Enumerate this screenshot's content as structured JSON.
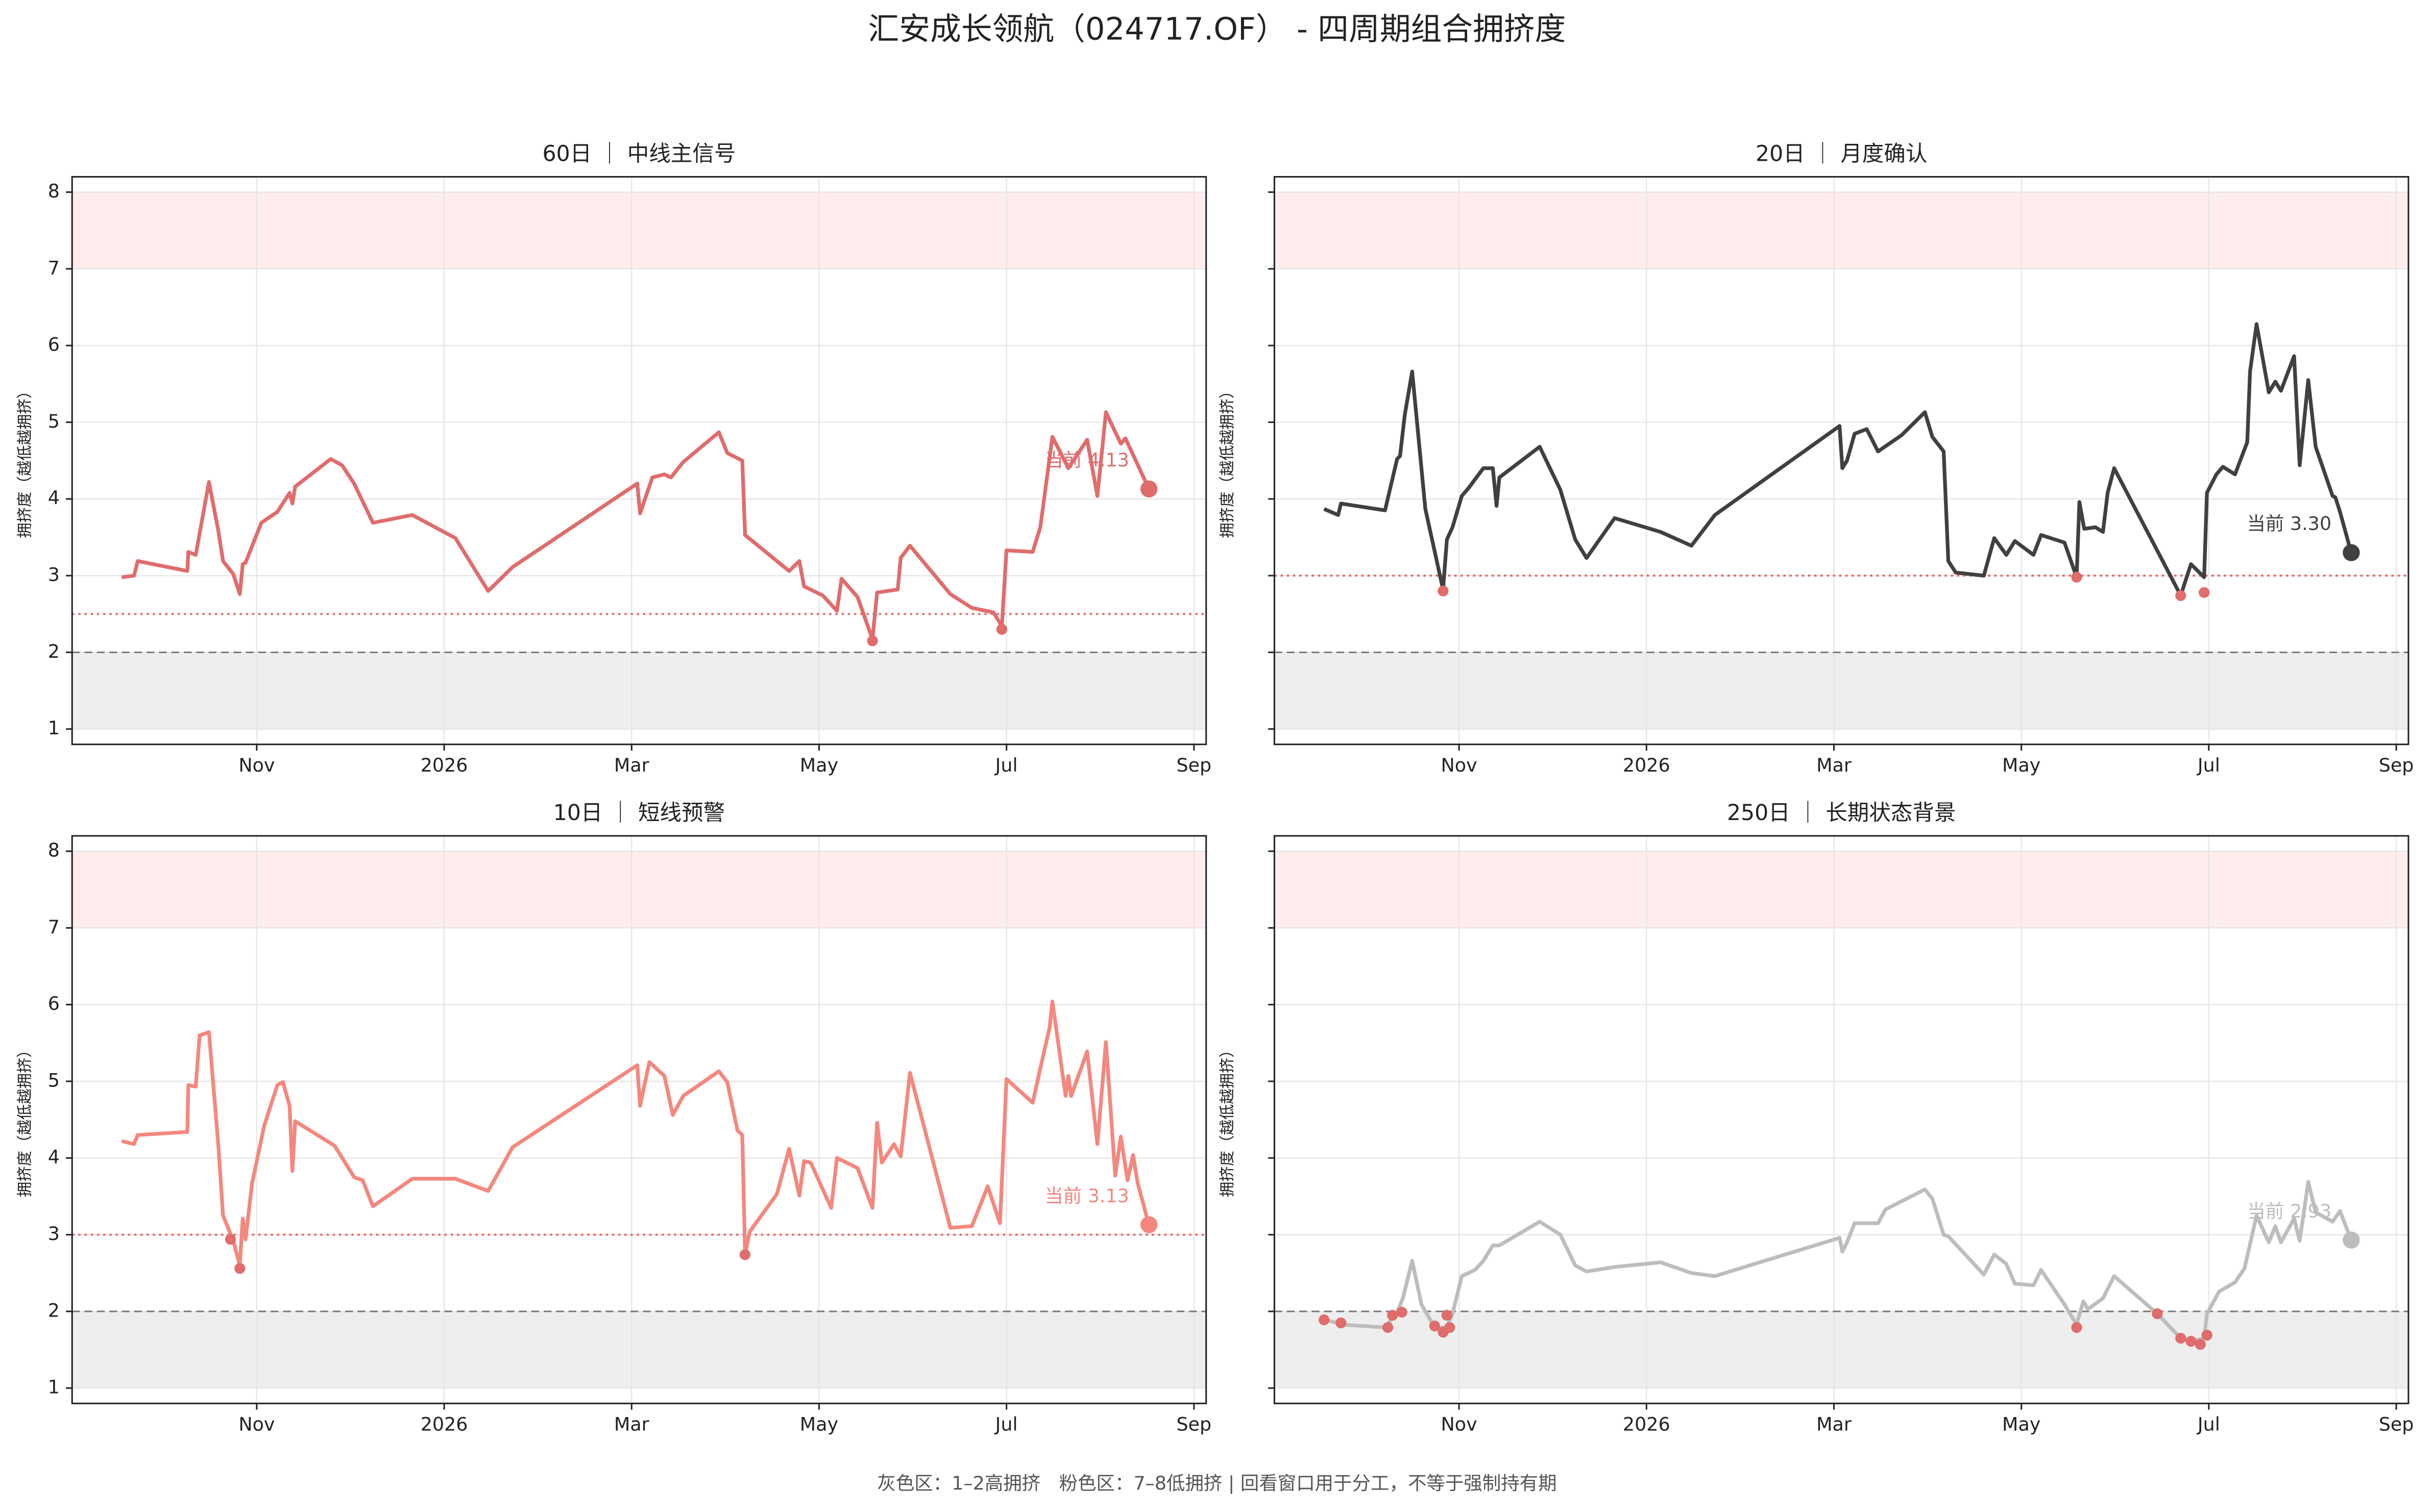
{
  "title": "汇安成长领航（024717.OF） - 四周期组合拥挤度",
  "footer": "灰色区：1–2高拥挤　粉色区：7–8低拥挤 | 回看窗口用于分工，不等于强制持有期",
  "chart_data": [
    {
      "type": "line",
      "title": "60日 ｜ 中线主信号",
      "ylabel": "拥挤度（越低越拥挤）",
      "color": "#e06c6c",
      "threshold": 2.5,
      "threshold_color": "#e06c6c",
      "reference_line": 2,
      "bands": [
        {
          "from": 1,
          "to": 2,
          "color": "#eeeeee"
        },
        {
          "from": 7,
          "to": 8,
          "color": "#ffeded"
        }
      ],
      "xlim": [
        8.03,
        20.13
      ],
      "ylim": [
        0.8,
        8.2
      ],
      "yticks": [
        1,
        2,
        3,
        4,
        5,
        6,
        7,
        8
      ],
      "xticks": [
        {
          "value": 10,
          "label": "Nov"
        },
        {
          "value": 12,
          "label": "2026"
        },
        {
          "value": 14,
          "label": "Mar"
        },
        {
          "value": 16,
          "label": "May"
        },
        {
          "value": 18,
          "label": "Jul"
        },
        {
          "value": 20,
          "label": "Sep"
        }
      ],
      "grid": true,
      "current_label": "当前 4.13",
      "x": [
        8.56,
        8.69,
        8.73,
        9.26,
        9.27,
        9.35,
        9.49,
        9.59,
        9.64,
        9.75,
        9.82,
        9.85,
        9.88,
        10.05,
        10.22,
        10.35,
        10.38,
        10.41,
        10.79,
        10.91,
        11.04,
        11.24,
        11.66,
        12.12,
        12.47,
        12.73,
        14.06,
        14.09,
        14.22,
        14.35,
        14.42,
        14.55,
        14.93,
        15.02,
        15.18,
        15.21,
        15.55,
        15.68,
        15.79,
        15.84,
        16.04,
        16.19,
        16.24,
        16.41,
        16.57,
        16.62,
        16.84,
        16.87,
        16.97,
        17.4,
        17.63,
        17.86,
        17.95,
        18.0,
        18.28,
        18.36,
        18.49,
        18.66,
        18.86,
        18.97,
        19.06,
        19.22,
        19.27,
        19.52
      ],
      "values": [
        2.98,
        3.0,
        3.19,
        3.06,
        3.31,
        3.27,
        4.22,
        3.59,
        3.19,
        3.02,
        2.76,
        3.15,
        3.17,
        3.69,
        3.83,
        4.08,
        3.94,
        4.16,
        4.52,
        4.44,
        4.2,
        3.69,
        3.79,
        3.49,
        2.8,
        3.11,
        4.2,
        3.81,
        4.28,
        4.32,
        4.28,
        4.48,
        4.87,
        4.6,
        4.5,
        3.53,
        3.19,
        3.06,
        3.19,
        2.86,
        2.74,
        2.54,
        2.96,
        2.72,
        2.17,
        2.78,
        2.82,
        3.23,
        3.39,
        2.76,
        2.58,
        2.52,
        2.34,
        3.33,
        3.31,
        3.63,
        4.81,
        4.4,
        4.77,
        4.04,
        5.13,
        4.72,
        4.79,
        4.13
      ],
      "markers": {
        "color": "#e06c6c",
        "x": [
          16.57,
          17.95
        ],
        "values": [
          2.15,
          2.3
        ]
      }
    },
    {
      "type": "line",
      "title": "20日 ｜ 月度确认",
      "ylabel": "拥挤度（越低越拥挤）",
      "color": "#404040",
      "threshold": 3,
      "threshold_color": "#e06c6c",
      "reference_line": 2,
      "bands": [
        {
          "from": 1,
          "to": 2,
          "color": "#eeeeee"
        },
        {
          "from": 7,
          "to": 8,
          "color": "#ffeded"
        }
      ],
      "xlim": [
        8.03,
        20.13
      ],
      "ylim": [
        0.8,
        8.2
      ],
      "yticks": [
        1,
        2,
        3,
        4,
        5,
        6,
        7,
        8
      ],
      "xticks": [
        {
          "value": 10,
          "label": "Nov"
        },
        {
          "value": 12,
          "label": "2026"
        },
        {
          "value": 14,
          "label": "Mar"
        },
        {
          "value": 16,
          "label": "May"
        },
        {
          "value": 18,
          "label": "Jul"
        },
        {
          "value": 20,
          "label": "Sep"
        }
      ],
      "grid": true,
      "current_label": "当前 3.30",
      "x": [
        8.56,
        8.71,
        8.74,
        9.21,
        9.34,
        9.37,
        9.42,
        9.5,
        9.64,
        9.83,
        9.87,
        9.93,
        10.03,
        10.1,
        10.26,
        10.36,
        10.4,
        10.43,
        10.86,
        11.08,
        11.24,
        11.36,
        11.66,
        12.15,
        12.48,
        12.73,
        14.06,
        14.09,
        14.14,
        14.22,
        14.35,
        14.47,
        14.72,
        14.97,
        15.05,
        15.17,
        15.22,
        15.3,
        15.6,
        15.71,
        15.84,
        15.93,
        16.13,
        16.21,
        16.46,
        16.59,
        16.62,
        16.67,
        16.79,
        16.87,
        16.92,
        16.99,
        17.7,
        17.81,
        17.95,
        17.98,
        18.08,
        18.15,
        18.28,
        18.41,
        18.44,
        18.51,
        18.64,
        18.71,
        18.77,
        18.91,
        18.97,
        19.06,
        19.14,
        19.32,
        19.35,
        19.4,
        19.52
      ],
      "values": [
        3.87,
        3.79,
        3.94,
        3.85,
        4.52,
        4.56,
        5.09,
        5.66,
        3.87,
        2.82,
        3.47,
        3.63,
        4.04,
        4.14,
        4.4,
        4.4,
        3.91,
        4.28,
        4.68,
        4.12,
        3.47,
        3.23,
        3.75,
        3.57,
        3.39,
        3.79,
        4.95,
        4.4,
        4.5,
        4.85,
        4.91,
        4.62,
        4.83,
        5.13,
        4.81,
        4.62,
        3.19,
        3.04,
        3.0,
        3.49,
        3.27,
        3.45,
        3.27,
        3.53,
        3.43,
        2.98,
        3.96,
        3.61,
        3.63,
        3.57,
        4.08,
        4.4,
        2.74,
        3.15,
        2.98,
        4.08,
        4.32,
        4.42,
        4.32,
        4.74,
        5.66,
        6.28,
        5.39,
        5.53,
        5.41,
        5.86,
        4.44,
        5.55,
        4.68,
        4.04,
        4.02,
        3.83,
        3.3
      ],
      "markers": {
        "color": "#e06c6c",
        "x": [
          9.83,
          16.59,
          17.7,
          17.95
        ],
        "values": [
          2.8,
          2.98,
          2.74,
          2.78
        ]
      }
    },
    {
      "type": "line",
      "title": "10日 ｜ 短线预警",
      "ylabel": "拥挤度（越低越拥挤）",
      "color": "#f4877e",
      "threshold": 3,
      "threshold_color": "#e06c6c",
      "reference_line": 2,
      "bands": [
        {
          "from": 1,
          "to": 2,
          "color": "#eeeeee"
        },
        {
          "from": 7,
          "to": 8,
          "color": "#ffeded"
        }
      ],
      "xlim": [
        8.03,
        20.13
      ],
      "ylim": [
        0.8,
        8.2
      ],
      "yticks": [
        1,
        2,
        3,
        4,
        5,
        6,
        7,
        8
      ],
      "xticks": [
        {
          "value": 10,
          "label": "Nov"
        },
        {
          "value": 12,
          "label": "2026"
        },
        {
          "value": 14,
          "label": "Mar"
        },
        {
          "value": 16,
          "label": "May"
        },
        {
          "value": 18,
          "label": "Jul"
        },
        {
          "value": 20,
          "label": "Sep"
        }
      ],
      "grid": true,
      "current_label": "当前 3.13",
      "x": [
        8.56,
        8.69,
        8.73,
        9.26,
        9.27,
        9.35,
        9.39,
        9.49,
        9.59,
        9.64,
        9.75,
        9.82,
        9.85,
        9.88,
        9.95,
        10.08,
        10.22,
        10.28,
        10.35,
        10.38,
        10.41,
        10.83,
        11.04,
        11.13,
        11.24,
        11.66,
        12.12,
        12.47,
        12.73,
        14.06,
        14.09,
        14.19,
        14.35,
        14.44,
        14.55,
        14.93,
        15.02,
        15.13,
        15.18,
        15.21,
        15.26,
        15.55,
        15.68,
        15.79,
        15.84,
        15.91,
        16.04,
        16.13,
        16.19,
        16.41,
        16.57,
        16.62,
        16.67,
        16.8,
        16.87,
        16.97,
        17.4,
        17.63,
        17.8,
        17.93,
        18.0,
        18.28,
        18.36,
        18.46,
        18.49,
        18.63,
        18.66,
        18.69,
        18.86,
        18.97,
        19.06,
        19.16,
        19.22,
        19.29,
        19.35,
        19.4,
        19.52
      ],
      "values": [
        4.22,
        4.18,
        4.3,
        4.34,
        4.95,
        4.93,
        5.6,
        5.64,
        4.18,
        3.25,
        2.92,
        2.6,
        3.21,
        2.94,
        3.67,
        4.42,
        4.95,
        4.99,
        4.68,
        3.83,
        4.48,
        4.16,
        3.75,
        3.71,
        3.37,
        3.73,
        3.73,
        3.57,
        4.14,
        5.21,
        4.68,
        5.25,
        5.07,
        4.56,
        4.81,
        5.13,
        4.99,
        4.36,
        4.3,
        2.74,
        3.04,
        3.53,
        4.12,
        3.51,
        3.96,
        3.94,
        3.59,
        3.35,
        4.0,
        3.87,
        3.35,
        4.46,
        3.94,
        4.18,
        4.02,
        5.11,
        3.09,
        3.11,
        3.63,
        3.15,
        5.03,
        4.72,
        5.17,
        5.7,
        6.04,
        4.81,
        5.07,
        4.81,
        5.39,
        4.18,
        5.51,
        3.77,
        4.28,
        3.71,
        4.04,
        3.67,
        3.13
      ],
      "markers": {
        "color": "#e06c6c",
        "x": [
          9.72,
          9.82,
          15.21
        ],
        "values": [
          2.94,
          2.56,
          2.74
        ]
      }
    },
    {
      "type": "line",
      "title": "250日 ｜ 长期状态背景",
      "ylabel": "拥挤度（越低越拥挤）",
      "color": "#bdbdbd",
      "reference_line": 2,
      "bands": [
        {
          "from": 1,
          "to": 2,
          "color": "#eeeeee"
        },
        {
          "from": 7,
          "to": 8,
          "color": "#ffeded"
        }
      ],
      "xlim": [
        8.03,
        20.13
      ],
      "ylim": [
        0.8,
        8.2
      ],
      "yticks": [
        1,
        2,
        3,
        4,
        5,
        6,
        7,
        8
      ],
      "xticks": [
        {
          "value": 10,
          "label": "Nov"
        },
        {
          "value": 12,
          "label": "2026"
        },
        {
          "value": 14,
          "label": "Mar"
        },
        {
          "value": 16,
          "label": "May"
        },
        {
          "value": 18,
          "label": "Jul"
        },
        {
          "value": 20,
          "label": "Sep"
        }
      ],
      "grid": true,
      "current_label": "当前 2.93",
      "x": [
        8.56,
        8.71,
        8.74,
        9.21,
        9.34,
        9.4,
        9.5,
        9.6,
        9.74,
        9.87,
        9.93,
        10.03,
        10.17,
        10.26,
        10.36,
        10.43,
        10.86,
        11.08,
        11.24,
        11.36,
        11.66,
        12.15,
        12.48,
        12.73,
        14.06,
        14.09,
        14.14,
        14.22,
        14.47,
        14.55,
        14.97,
        15.05,
        15.17,
        15.22,
        15.6,
        15.71,
        15.84,
        15.93,
        16.13,
        16.21,
        16.46,
        16.59,
        16.66,
        16.71,
        16.87,
        16.99,
        17.45,
        17.7,
        17.81,
        17.95,
        17.98,
        18.11,
        18.28,
        18.38,
        18.51,
        18.64,
        18.71,
        18.77,
        18.91,
        18.97,
        19.06,
        19.14,
        19.32,
        19.4,
        19.52
      ],
      "values": [
        1.89,
        1.85,
        1.83,
        1.79,
        1.99,
        2.17,
        2.66,
        2.09,
        1.79,
        1.79,
        1.97,
        2.46,
        2.54,
        2.66,
        2.86,
        2.86,
        3.17,
        3.0,
        2.6,
        2.52,
        2.58,
        2.64,
        2.5,
        2.46,
        2.96,
        2.78,
        2.9,
        3.15,
        3.15,
        3.33,
        3.59,
        3.47,
        3.0,
        2.98,
        2.48,
        2.74,
        2.62,
        2.36,
        2.34,
        2.54,
        2.09,
        1.83,
        2.13,
        2.03,
        2.17,
        2.46,
        1.97,
        1.65,
        1.61,
        1.65,
        1.97,
        2.26,
        2.38,
        2.56,
        3.25,
        2.9,
        3.11,
        2.9,
        3.21,
        2.92,
        3.69,
        3.29,
        3.17,
        3.31,
        2.93
      ],
      "markers": {
        "color": "#e06c6c",
        "x": [
          8.56,
          8.74,
          9.24,
          9.29,
          9.39,
          9.74,
          9.83,
          9.87,
          9.9,
          16.59,
          17.45,
          17.7,
          17.81,
          17.91,
          17.98
        ],
        "values": [
          1.89,
          1.85,
          1.79,
          1.95,
          1.99,
          1.81,
          1.73,
          1.95,
          1.79,
          1.79,
          1.97,
          1.65,
          1.61,
          1.57,
          1.69
        ]
      }
    }
  ]
}
